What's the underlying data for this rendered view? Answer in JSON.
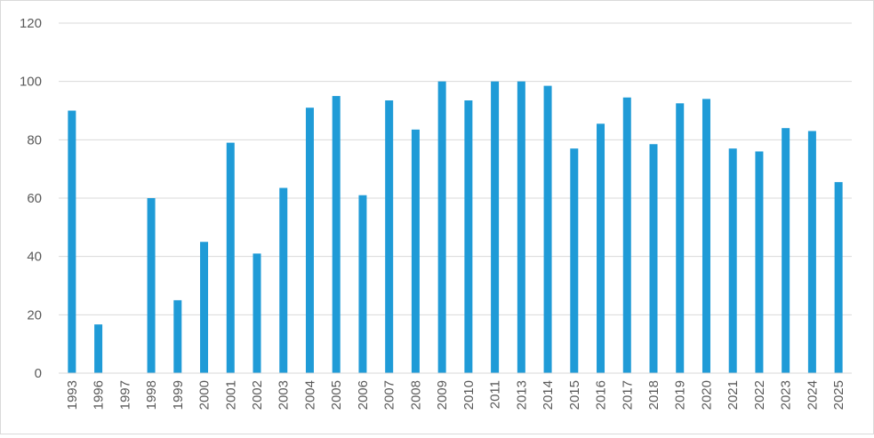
{
  "chart_data": {
    "type": "bar",
    "categories": [
      "1993",
      "1996",
      "1997",
      "1998",
      "1999",
      "2000",
      "2001",
      "2002",
      "2003",
      "2004",
      "2005",
      "2006",
      "2007",
      "2008",
      "2009",
      "2010",
      "2011",
      "2013",
      "2014",
      "2015",
      "2016",
      "2017",
      "2018",
      "2019",
      "2020",
      "2021",
      "2022",
      "2023",
      "2024",
      "2025"
    ],
    "series": [
      {
        "values": [
          90,
          16.7,
          0,
          60,
          25,
          45,
          79,
          41,
          63.5,
          91,
          95,
          61,
          93.5,
          83.5,
          100,
          93.5,
          100,
          100,
          98.5,
          77,
          85.5,
          94.5,
          78.5,
          92.5,
          94,
          77,
          76,
          84,
          83,
          65.5
        ]
      }
    ],
    "title": "",
    "xlabel": "",
    "ylabel": "",
    "ylim": [
      0,
      120
    ],
    "yticks": [
      0,
      20,
      40,
      60,
      80,
      100,
      120
    ],
    "grid": true,
    "legend": "none",
    "bar_color": "#1f9bd7",
    "grid_color": "#d9d9d9",
    "label_color": "#595959"
  }
}
